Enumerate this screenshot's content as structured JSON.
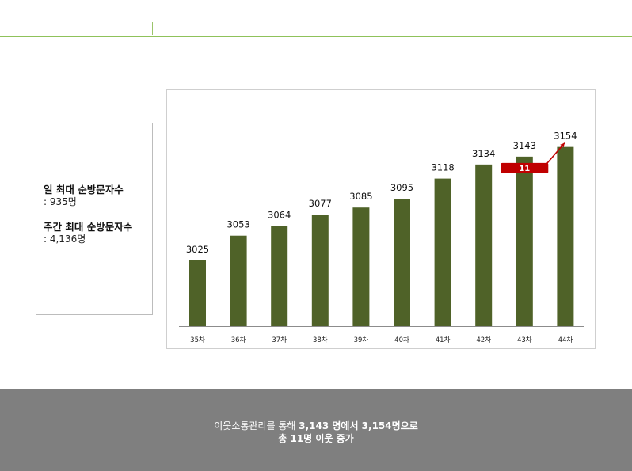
{
  "header": {
    "title": "",
    "subtitle": ""
  },
  "stats": {
    "daily": {
      "label": "일 최대 순방문자수",
      "value": ": 935명"
    },
    "weekly": {
      "label": "주간 최대 순방문자수",
      "value": ": 4,136명"
    }
  },
  "chart_data": {
    "type": "bar",
    "categories": [
      "35차",
      "36차",
      "37차",
      "38차",
      "39차",
      "40차",
      "41차",
      "42차",
      "43차",
      "44차"
    ],
    "values": [
      3025,
      3053,
      3064,
      3077,
      3085,
      3095,
      3118,
      3134,
      3143,
      3154
    ],
    "title": "",
    "xlabel": "",
    "ylabel": "",
    "ylim": [
      2950,
      3160
    ],
    "grid": false,
    "legend": "none",
    "bar_color": "#4f6228",
    "annotation": {
      "text": "11",
      "from_category": "43차",
      "to_category": "44차",
      "color": "#c00000"
    }
  },
  "banner": {
    "line1_prefix": "이웃소통관리를 통해 ",
    "line1_bold": "3,143 명에서 3,154명으로",
    "line2": "총 11명 이웃 증가",
    "background": "#7f7f7f"
  }
}
